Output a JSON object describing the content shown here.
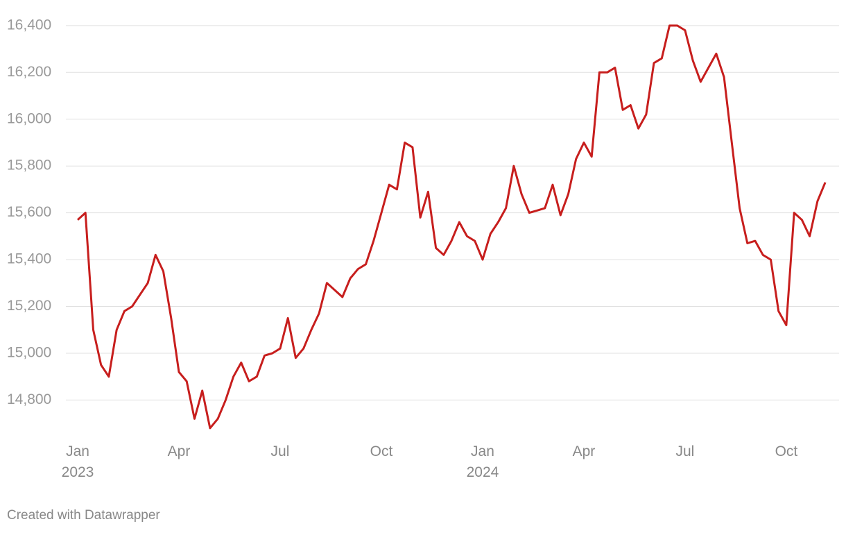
{
  "chart_data": {
    "type": "line",
    "categories": [
      "Jan\n2023",
      null,
      null,
      null,
      null,
      null,
      null,
      null,
      null,
      null,
      null,
      null,
      null,
      "Apr",
      null,
      null,
      null,
      null,
      null,
      null,
      null,
      null,
      null,
      null,
      null,
      null,
      "Jul",
      null,
      null,
      null,
      null,
      null,
      null,
      null,
      null,
      null,
      null,
      null,
      null,
      "Oct",
      null,
      null,
      null,
      null,
      null,
      null,
      null,
      null,
      null,
      null,
      null,
      null,
      "Jan\n2024",
      null,
      null,
      null,
      null,
      null,
      null,
      null,
      null,
      null,
      null,
      null,
      null,
      "Apr",
      null,
      null,
      null,
      null,
      null,
      null,
      null,
      null,
      null,
      null,
      null,
      null,
      "Jul",
      null,
      null,
      null,
      null,
      null,
      null,
      null,
      null,
      null,
      null,
      null,
      null,
      "Oct",
      null,
      null,
      null,
      null,
      null
    ],
    "series": [
      {
        "color": "#c71e1d",
        "values": [
          15570,
          15600,
          15100,
          14950,
          14900,
          15100,
          15180,
          15200,
          15250,
          15300,
          15420,
          15350,
          15150,
          14920,
          14880,
          14720,
          14840,
          14680,
          14720,
          14800,
          14900,
          14960,
          14880,
          14900,
          14990,
          15000,
          15020,
          15150,
          14980,
          15020,
          15100,
          15170,
          15300,
          15270,
          15240,
          15320,
          15360,
          15380,
          15480,
          15600,
          15720,
          15700,
          15900,
          15880,
          15580,
          15690,
          15450,
          15420,
          15480,
          15560,
          15500,
          15480,
          15400,
          15510,
          15560,
          15620,
          15800,
          15680,
          15600,
          15610,
          15620,
          15720,
          15590,
          15680,
          15830,
          15900,
          15840,
          16200,
          16200,
          16220,
          16040,
          16060,
          15960,
          16020,
          16240,
          16260,
          16400,
          16400,
          16380,
          16250,
          16160,
          16220,
          16280,
          16180,
          15900,
          15620,
          15470,
          15480,
          15420,
          15400,
          15180,
          15120,
          15600,
          15570,
          15500,
          15650,
          15730
        ]
      }
    ],
    "ylim": [
      14650,
      16450
    ],
    "yticks": [
      {
        "value": 14800,
        "label": "14,800"
      },
      {
        "value": 15000,
        "label": "15,000"
      },
      {
        "value": 15200,
        "label": "15,200"
      },
      {
        "value": 15400,
        "label": "15,400"
      },
      {
        "value": 15600,
        "label": "15,600"
      },
      {
        "value": 15800,
        "label": "15,800"
      },
      {
        "value": 16000,
        "label": "16,000"
      },
      {
        "value": 16200,
        "label": "16,200"
      },
      {
        "value": 16400,
        "label": "16,400"
      }
    ],
    "grid": true,
    "source": "Created with Datawrapper"
  }
}
